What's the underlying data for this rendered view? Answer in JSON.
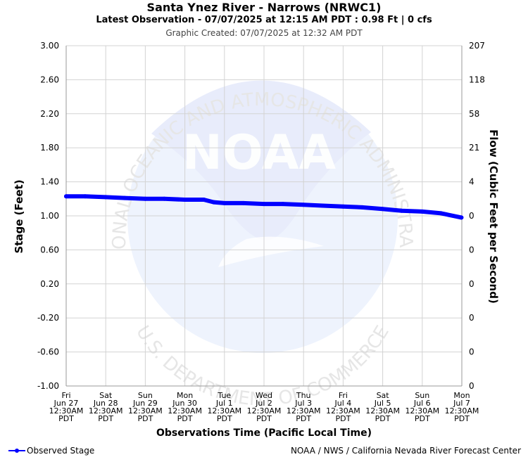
{
  "header": {
    "title": "Santa Ynez River - Narrows (NRWC1)",
    "subtitle": "Latest Observation - 07/07/2025 at 12:15 AM PDT : 0.98 Ft | 0 cfs",
    "created": "Graphic Created: 07/07/2025 at 12:32 AM PDT"
  },
  "watermark": {
    "logo_text": "NOAA",
    "ring_top": "NATIONAL OCEANIC AND ATMOSPHERIC ADMINISTRATION",
    "ring_bottom": "U.S. DEPARTMENT OF COMMERCE"
  },
  "legend": {
    "label": "Observed Stage"
  },
  "footer": {
    "credit": "NOAA / NWS / California Nevada River Forecast Center"
  },
  "colors": {
    "series": "#0000ff",
    "grid": "#d3d3d3",
    "watermark": "#e8ecfb"
  },
  "chart_data": {
    "type": "line",
    "xlabel": "Observations Time (Pacific Local Time)",
    "ylabel": "Stage (Feet)",
    "y2label": "Flow (Cubic Feet per Second)",
    "ylim": [
      -1.0,
      3.0
    ],
    "yticks": [
      "3.00",
      "2.60",
      "2.20",
      "1.80",
      "1.40",
      "1.00",
      "0.60",
      "0.20",
      "-0.20",
      "-0.60",
      "-1.00"
    ],
    "y2ticks": [
      "207",
      "118",
      "58",
      "21",
      "4",
      "0",
      "0",
      "0",
      "0",
      "0",
      "0"
    ],
    "xrange": [
      "2025-06-27 00:30",
      "2025-07-07 00:30"
    ],
    "xticks": [
      [
        "Fri",
        "Jun 27",
        "12:30AM",
        "PDT"
      ],
      [
        "Sat",
        "Jun 28",
        "12:30AM",
        "PDT"
      ],
      [
        "Sun",
        "Jun 29",
        "12:30AM",
        "PDT"
      ],
      [
        "Mon",
        "Jun 30",
        "12:30AM",
        "PDT"
      ],
      [
        "Tue",
        "Jul 1",
        "12:30AM",
        "PDT"
      ],
      [
        "Wed",
        "Jul 2",
        "12:30AM",
        "PDT"
      ],
      [
        "Thu",
        "Jul 3",
        "12:30AM",
        "PDT"
      ],
      [
        "Fri",
        "Jul 4",
        "12:30AM",
        "PDT"
      ],
      [
        "Sat",
        "Jul 5",
        "12:30AM",
        "PDT"
      ],
      [
        "Sun",
        "Jul 6",
        "12:30AM",
        "PDT"
      ],
      [
        "Mon",
        "Jul 7",
        "12:30AM",
        "PDT"
      ]
    ],
    "grid": true,
    "legend_position": "bottom-left",
    "series": [
      {
        "name": "Observed Stage",
        "x": [
          "2025-06-27 00:30",
          "2025-06-27 12:00",
          "2025-06-28 00:30",
          "2025-06-28 12:00",
          "2025-06-29 00:30",
          "2025-06-29 12:00",
          "2025-06-30 00:30",
          "2025-06-30 12:00",
          "2025-06-30 18:00",
          "2025-07-01 00:30",
          "2025-07-01 12:00",
          "2025-07-02 00:30",
          "2025-07-02 12:00",
          "2025-07-03 00:30",
          "2025-07-03 12:00",
          "2025-07-04 00:30",
          "2025-07-04 12:00",
          "2025-07-05 00:30",
          "2025-07-05 12:00",
          "2025-07-06 00:30",
          "2025-07-06 12:00",
          "2025-07-07 00:15"
        ],
        "y": [
          1.23,
          1.23,
          1.22,
          1.21,
          1.2,
          1.2,
          1.19,
          1.19,
          1.16,
          1.15,
          1.15,
          1.14,
          1.14,
          1.13,
          1.12,
          1.11,
          1.1,
          1.08,
          1.06,
          1.05,
          1.03,
          0.98
        ]
      }
    ]
  }
}
